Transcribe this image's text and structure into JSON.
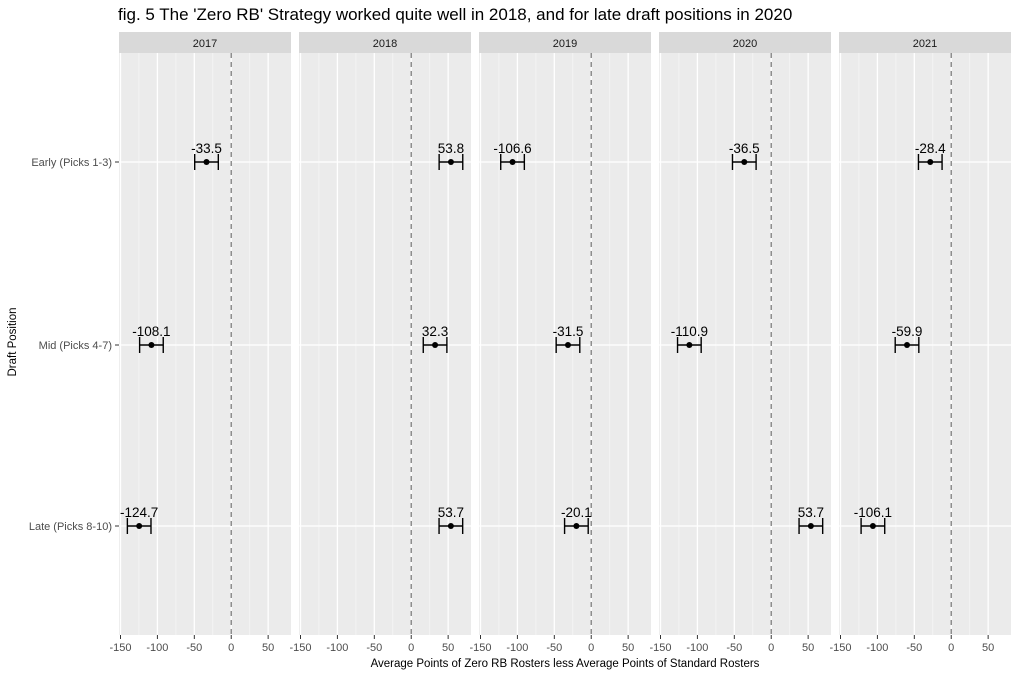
{
  "chart_data": {
    "type": "errorbar-dot",
    "title": "fig. 5 The 'Zero RB' Strategy worked quite well in 2018, and for late draft positions in 2020",
    "xlabel": "Average Points of Zero RB Rosters less Average Points of Standard Rosters",
    "ylabel": "Draft Position",
    "xlim": [
      -150,
      75
    ],
    "x_ticks": [
      -150,
      -100,
      -50,
      0,
      50
    ],
    "x_tick_labels": [
      "-150",
      "-100",
      "-50",
      "0",
      "50"
    ],
    "reference_line_x": 0,
    "categories": [
      "Early (Picks 1-3)",
      "Mid (Picks 4-7)",
      "Late (Picks 8-10)"
    ],
    "error_halfwidth": 16,
    "panels": [
      {
        "facet": "2017",
        "values": [
          -33.5,
          -108.1,
          -124.7
        ],
        "labels": [
          "-33.5",
          "-108.1",
          "-124.7"
        ]
      },
      {
        "facet": "2018",
        "values": [
          53.8,
          32.3,
          53.7
        ],
        "labels": [
          "53.8",
          "32.3",
          "53.7"
        ]
      },
      {
        "facet": "2019",
        "values": [
          -106.6,
          -31.5,
          -20.1
        ],
        "labels": [
          "-106.6",
          "-31.5",
          "-20.1"
        ]
      },
      {
        "facet": "2020",
        "values": [
          -36.5,
          -110.9,
          53.7
        ],
        "labels": [
          "-36.5",
          "-110.9",
          "53.7"
        ]
      },
      {
        "facet": "2021",
        "values": [
          -28.4,
          -59.9,
          -106.1
        ],
        "labels": [
          "-28.4",
          "-59.9",
          "-106.1"
        ]
      }
    ],
    "grid": true
  }
}
